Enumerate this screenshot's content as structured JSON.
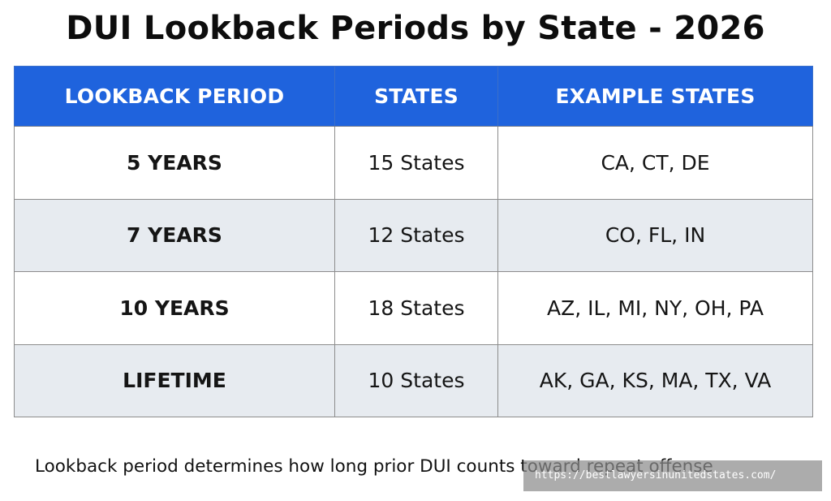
{
  "title": "DUI Lookback Periods by State - 2026",
  "table": {
    "headers": [
      "LOOKBACK PERIOD",
      "STATES",
      "EXAMPLE STATES"
    ],
    "rows": [
      {
        "period": "5 YEARS",
        "states": "15 States",
        "examples": "CA, CT, DE"
      },
      {
        "period": "7 YEARS",
        "states": "12 States",
        "examples": "CO, FL, IN"
      },
      {
        "period": "10 YEARS",
        "states": "18 States",
        "examples": "AZ, IL, MI, NY, OH, PA"
      },
      {
        "period": "LIFETIME",
        "states": "10 States",
        "examples": "AK, GA, KS, MA, TX, VA"
      }
    ]
  },
  "footnote": "Lookback period determines how long prior DUI counts toward repeat offense",
  "watermark": "https://bestlawyersinunitedstates.com/",
  "colors": {
    "header_bg": "#1f63dd",
    "header_text": "#ffffff",
    "row_shade": "#e7ebf0"
  }
}
